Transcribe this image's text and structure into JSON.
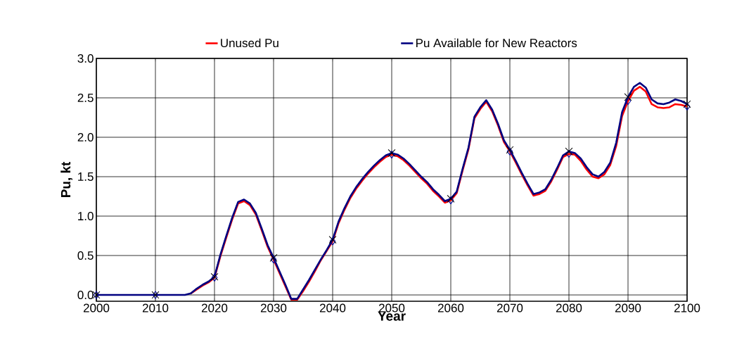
{
  "chart_data": {
    "type": "line",
    "xlabel": "Year",
    "ylabel": "Pu, kt",
    "x": [
      2000,
      2001,
      2002,
      2003,
      2004,
      2005,
      2006,
      2007,
      2008,
      2009,
      2010,
      2011,
      2012,
      2013,
      2014,
      2015,
      2016,
      2017,
      2018,
      2019,
      2020,
      2021,
      2022,
      2023,
      2024,
      2025,
      2026,
      2027,
      2028,
      2029,
      2030,
      2031,
      2032,
      2033,
      2034,
      2035,
      2036,
      2037,
      2038,
      2039,
      2040,
      2041,
      2042,
      2043,
      2044,
      2045,
      2046,
      2047,
      2048,
      2049,
      2050,
      2051,
      2052,
      2053,
      2054,
      2055,
      2056,
      2057,
      2058,
      2059,
      2060,
      2061,
      2062,
      2063,
      2064,
      2065,
      2066,
      2067,
      2068,
      2069,
      2070,
      2071,
      2072,
      2073,
      2074,
      2075,
      2076,
      2077,
      2078,
      2079,
      2080,
      2081,
      2082,
      2083,
      2084,
      2085,
      2086,
      2087,
      2088,
      2089,
      2090,
      2091,
      2092,
      2093,
      2094,
      2095,
      2096,
      2097,
      2098,
      2099,
      2100
    ],
    "series": [
      {
        "name": "Unused Pu",
        "color": "#ff0000",
        "values": [
          null,
          null,
          null,
          null,
          null,
          null,
          null,
          null,
          null,
          null,
          null,
          null,
          null,
          null,
          null,
          null,
          0.02,
          0.07,
          0.12,
          0.16,
          0.22,
          0.49,
          0.73,
          0.96,
          1.16,
          1.19,
          1.14,
          1.02,
          0.82,
          0.61,
          0.45,
          0.28,
          0.11,
          -0.06,
          -0.06,
          0.05,
          0.17,
          0.3,
          0.44,
          0.56,
          0.68,
          0.91,
          1.08,
          1.23,
          1.35,
          1.45,
          1.54,
          1.62,
          1.69,
          1.75,
          1.78,
          1.76,
          1.71,
          1.64,
          1.56,
          1.48,
          1.41,
          1.32,
          1.25,
          1.17,
          1.2,
          1.29,
          1.58,
          1.85,
          2.24,
          2.36,
          2.45,
          2.33,
          2.15,
          1.94,
          1.82,
          1.68,
          1.53,
          1.39,
          1.26,
          1.28,
          1.32,
          1.44,
          1.59,
          1.75,
          1.79,
          1.78,
          1.7,
          1.59,
          1.5,
          1.48,
          1.53,
          1.65,
          1.89,
          2.27,
          2.46,
          2.59,
          2.64,
          2.58,
          2.42,
          2.38,
          2.37,
          2.38,
          2.42,
          2.41,
          2.39
        ]
      },
      {
        "name": "Pu Available for New Reactors",
        "color": "#000080",
        "values": [
          0,
          0,
          0,
          0,
          0,
          0,
          0,
          0,
          0,
          0,
          0,
          0,
          0,
          0,
          0,
          0,
          0.02,
          0.08,
          0.13,
          0.17,
          0.23,
          0.51,
          0.75,
          0.98,
          1.18,
          1.21,
          1.16,
          1.04,
          0.84,
          0.63,
          0.47,
          0.3,
          0.13,
          -0.05,
          -0.05,
          0.07,
          0.19,
          0.32,
          0.45,
          0.57,
          0.7,
          0.93,
          1.1,
          1.25,
          1.37,
          1.47,
          1.56,
          1.64,
          1.71,
          1.77,
          1.8,
          1.78,
          1.73,
          1.66,
          1.58,
          1.5,
          1.43,
          1.34,
          1.27,
          1.19,
          1.22,
          1.31,
          1.6,
          1.87,
          2.26,
          2.38,
          2.47,
          2.35,
          2.17,
          1.96,
          1.84,
          1.7,
          1.55,
          1.41,
          1.28,
          1.3,
          1.34,
          1.46,
          1.61,
          1.77,
          1.82,
          1.8,
          1.73,
          1.62,
          1.53,
          1.5,
          1.56,
          1.68,
          1.93,
          2.32,
          2.51,
          2.64,
          2.69,
          2.63,
          2.48,
          2.43,
          2.42,
          2.44,
          2.48,
          2.46,
          2.42
        ]
      },
      {
        "type": "scatter",
        "color": "#0000a0",
        "marker": "diamond",
        "x": [
          2000,
          2010,
          2020,
          2030,
          2040,
          2050,
          2060,
          2070,
          2080,
          2090,
          2100
        ],
        "values": [
          0,
          0,
          0.22,
          0.45,
          0.68,
          1.78,
          1.2,
          1.82,
          1.79,
          2.46,
          2.39
        ]
      },
      {
        "type": "scatter",
        "color": "#000000",
        "marker": "cross",
        "x": [
          2000,
          2010,
          2020,
          2030,
          2040,
          2050,
          2060,
          2070,
          2080,
          2090,
          2100
        ],
        "values": [
          0,
          0,
          0.23,
          0.47,
          0.7,
          1.8,
          1.22,
          1.84,
          1.82,
          2.51,
          2.42
        ]
      }
    ],
    "xlim": [
      2000,
      2100
    ],
    "xticks": [
      2000,
      2010,
      2020,
      2030,
      2040,
      2050,
      2060,
      2070,
      2080,
      2090,
      2100
    ],
    "ylim": [
      -0.08,
      3.0
    ],
    "yticks": [
      {
        "value": 0,
        "label": "0.0"
      },
      {
        "value": 0.5,
        "label": "0.5"
      },
      {
        "value": 1,
        "label": "1.0"
      },
      {
        "value": 1.5,
        "label": "1.5"
      },
      {
        "value": 2,
        "label": "2.0"
      },
      {
        "value": 2.5,
        "label": "2.5"
      },
      {
        "value": 3,
        "label": "3.0"
      }
    ],
    "grid": true,
    "legend": "top",
    "line_style": "solid"
  }
}
